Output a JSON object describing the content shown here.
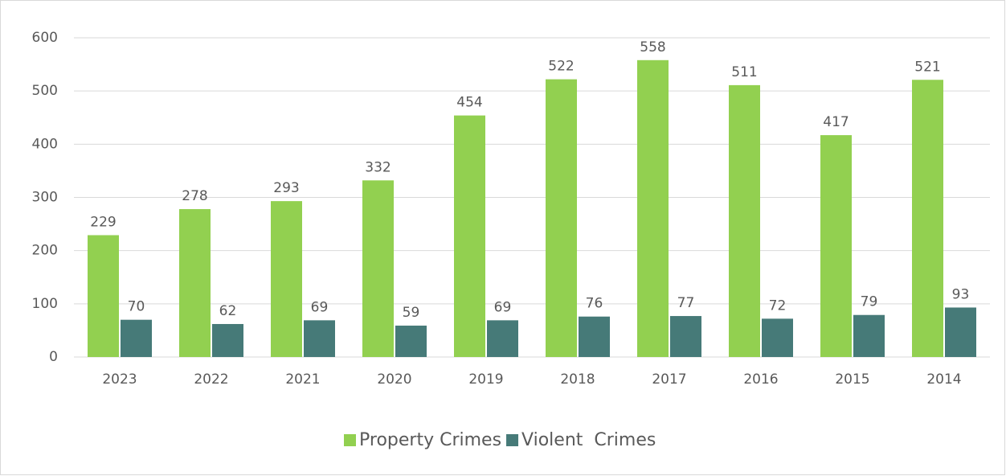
{
  "chart_data": {
    "type": "bar",
    "categories": [
      "2023",
      "2022",
      "2021",
      "2020",
      "2019",
      "2018",
      "2017",
      "2016",
      "2015",
      "2014"
    ],
    "series": [
      {
        "name": "Property Crimes",
        "color": "#92d050",
        "values": [
          229,
          278,
          293,
          332,
          454,
          522,
          558,
          511,
          417,
          521
        ]
      },
      {
        "name": "Violent  Crimes",
        "color": "#467a78",
        "values": [
          70,
          62,
          69,
          59,
          69,
          76,
          77,
          72,
          79,
          93
        ]
      }
    ],
    "ylim": [
      0,
      600
    ],
    "yticks": [
      0,
      100,
      200,
      300,
      400,
      500,
      600
    ],
    "grid": true,
    "legend": "bottom"
  }
}
